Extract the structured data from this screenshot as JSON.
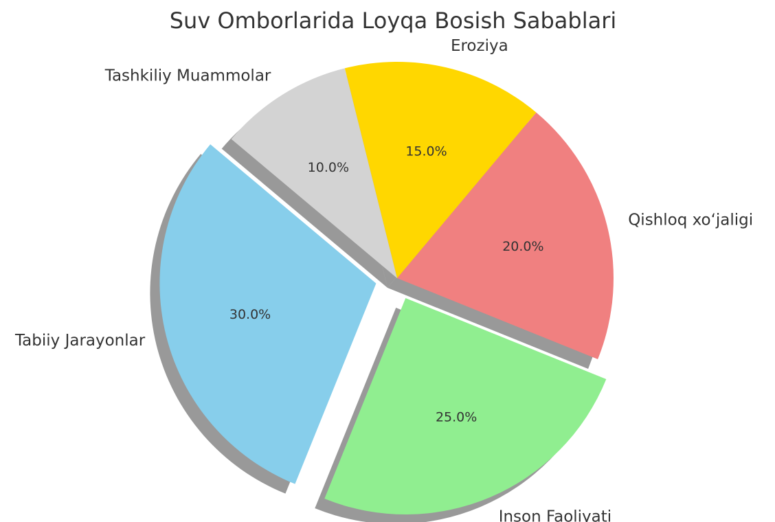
{
  "chart_data": {
    "type": "pie",
    "title": "Suv Omborlarida Loyqa Bosish Sabablari",
    "categories": [
      "Tabiiy Jarayonlar",
      "Inson Faoliyati",
      "Qishloq xo‘jaligi",
      "Eroziya",
      "Tashkiliy Muammolar"
    ],
    "values": [
      30,
      25,
      20,
      15,
      10
    ],
    "value_labels": [
      "30.0%",
      "25.0%",
      "20.0%",
      "15.0%",
      "10.0%"
    ],
    "colors": [
      "#87ceeb",
      "#90ee90",
      "#f08080",
      "#ffd700",
      "#d3d3d3"
    ],
    "explode": [
      0.1,
      0.1,
      0,
      0,
      0
    ],
    "startangle": 140,
    "shadow": true
  }
}
